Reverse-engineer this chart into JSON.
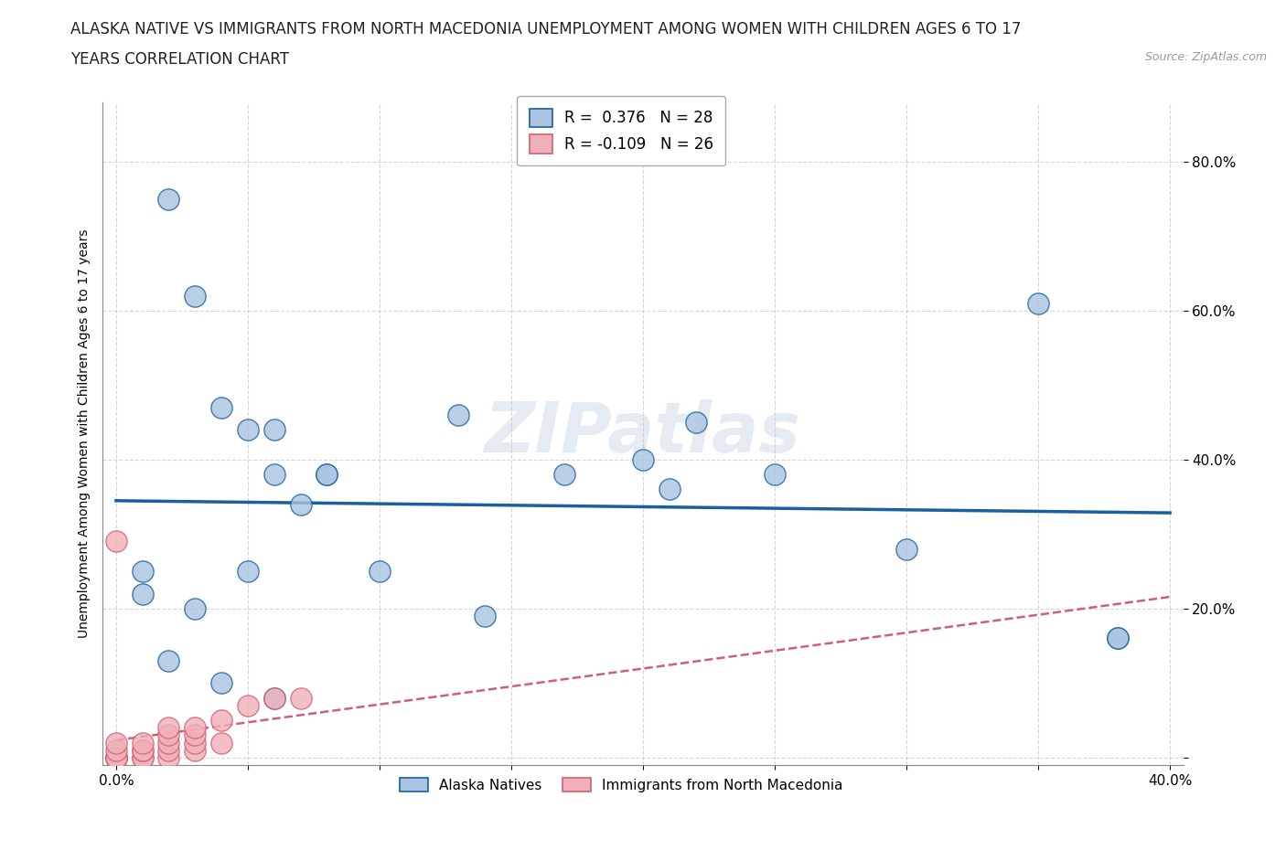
{
  "title_line1": "ALASKA NATIVE VS IMMIGRANTS FROM NORTH MACEDONIA UNEMPLOYMENT AMONG WOMEN WITH CHILDREN AGES 6 TO 17",
  "title_line2": "YEARS CORRELATION CHART",
  "source": "Source: ZipAtlas.com",
  "ylabel": "Unemployment Among Women with Children Ages 6 to 17 years",
  "xlim": [
    -0.005,
    0.405
  ],
  "ylim": [
    -0.01,
    0.88
  ],
  "xticks": [
    0.0,
    0.05,
    0.1,
    0.15,
    0.2,
    0.25,
    0.3,
    0.35,
    0.4
  ],
  "xticklabels": [
    "0.0%",
    "",
    "",
    "",
    "",
    "",
    "",
    "",
    "40.0%"
  ],
  "ytick_positions": [
    0.0,
    0.2,
    0.4,
    0.6,
    0.8
  ],
  "yticklabels": [
    "",
    "20.0%",
    "40.0%",
    "60.0%",
    "80.0%"
  ],
  "alaska_x": [
    0.02,
    0.03,
    0.04,
    0.05,
    0.06,
    0.06,
    0.07,
    0.08,
    0.08,
    0.1,
    0.13,
    0.14,
    0.17,
    0.2,
    0.21,
    0.22,
    0.25,
    0.3,
    0.35,
    0.38,
    0.01,
    0.01,
    0.02,
    0.03,
    0.04,
    0.05,
    0.06,
    0.38
  ],
  "alaska_y": [
    0.75,
    0.62,
    0.47,
    0.44,
    0.44,
    0.38,
    0.34,
    0.38,
    0.38,
    0.25,
    0.46,
    0.19,
    0.38,
    0.4,
    0.36,
    0.45,
    0.38,
    0.28,
    0.61,
    0.16,
    0.22,
    0.25,
    0.13,
    0.2,
    0.1,
    0.25,
    0.08,
    0.16
  ],
  "macedonia_x": [
    0.0,
    0.0,
    0.0,
    0.0,
    0.0,
    0.0,
    0.0,
    0.01,
    0.01,
    0.01,
    0.01,
    0.01,
    0.02,
    0.02,
    0.02,
    0.02,
    0.02,
    0.03,
    0.03,
    0.03,
    0.03,
    0.04,
    0.04,
    0.05,
    0.06,
    0.07
  ],
  "macedonia_y": [
    0.0,
    0.0,
    0.0,
    0.0,
    0.01,
    0.02,
    0.29,
    0.0,
    0.0,
    0.01,
    0.01,
    0.02,
    0.0,
    0.01,
    0.02,
    0.03,
    0.04,
    0.01,
    0.02,
    0.03,
    0.04,
    0.02,
    0.05,
    0.07,
    0.08,
    0.08
  ],
  "alaska_R": 0.376,
  "alaska_N": 28,
  "macedonia_R": -0.109,
  "macedonia_N": 26,
  "alaska_color": "#a8c4e0",
  "alaska_line_color": "#1a5fa0",
  "macedonia_color": "#f0b0b8",
  "macedonia_line_color": "#d06070",
  "background_color": "#ffffff",
  "watermark": "ZIPatlas",
  "title_fontsize": 12,
  "axis_label_fontsize": 10,
  "tick_fontsize": 11
}
